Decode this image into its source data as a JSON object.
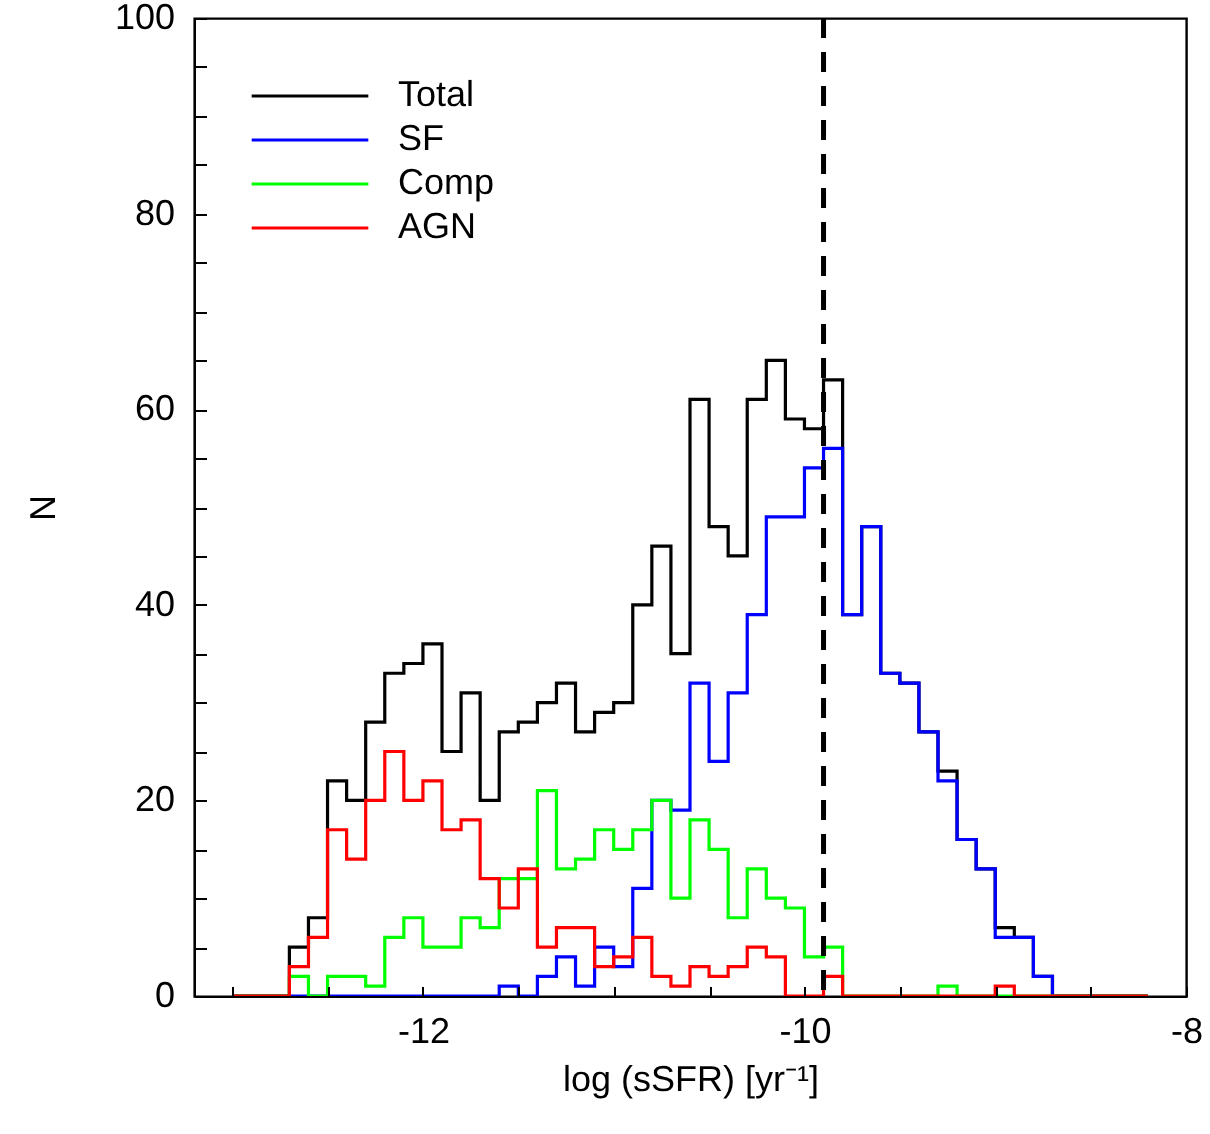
{
  "chart_data": {
    "type": "histogram",
    "xlabel": "log (sSFR) [yr⁻¹]",
    "ylabel": "N",
    "bins": [
      -13.0,
      -12.9,
      -12.8,
      -12.7,
      -12.6,
      -12.5,
      -12.4,
      -12.3,
      -12.2,
      -12.1,
      -12.0,
      -11.9,
      -11.8,
      -11.7,
      -11.6,
      -11.5,
      -11.4,
      -11.3,
      -11.2,
      -11.1,
      -11.0,
      -10.9,
      -10.8,
      -10.7,
      -10.6,
      -10.5,
      -10.4,
      -10.3,
      -10.2,
      -10.1,
      -10.0,
      -9.9,
      -9.8,
      -9.7,
      -9.6,
      -9.5,
      -9.4,
      -9.3,
      -9.2,
      -9.1,
      -9.0,
      -8.9,
      -8.8,
      -8.7,
      -8.6,
      -8.5,
      -8.4,
      -8.3,
      -8.2
    ],
    "series": [
      {
        "name": "Total",
        "color": "#000000",
        "values": [
          0,
          0,
          0,
          5,
          8,
          22,
          20,
          28,
          33,
          34,
          36,
          25,
          31,
          20,
          27,
          28,
          30,
          32,
          27,
          29,
          30,
          40,
          46,
          35,
          61,
          48,
          45,
          61,
          65,
          59,
          58,
          63,
          39,
          48,
          33,
          32,
          27,
          23,
          16,
          13,
          7,
          6,
          2,
          0,
          0,
          0,
          0,
          0
        ]
      },
      {
        "name": "SF",
        "color": "#0000ff",
        "values": [
          0,
          0,
          0,
          0,
          0,
          0,
          0,
          0,
          0,
          0,
          0,
          0,
          0,
          0,
          1,
          0,
          2,
          4,
          1,
          5,
          3,
          11,
          20,
          19,
          32,
          24,
          31,
          39,
          49,
          49,
          54,
          56,
          39,
          48,
          33,
          32,
          27,
          22,
          16,
          13,
          6,
          6,
          2,
          0,
          0,
          0,
          0,
          0
        ]
      },
      {
        "name": "Comp",
        "color": "#00ff00",
        "values": [
          0,
          0,
          0,
          2,
          0,
          2,
          2,
          1,
          6,
          8,
          5,
          5,
          8,
          7,
          12,
          12,
          21,
          13,
          14,
          17,
          15,
          17,
          20,
          10,
          18,
          15,
          8,
          13,
          10,
          9,
          4,
          5,
          0,
          0,
          0,
          0,
          0,
          1,
          0,
          0,
          0,
          0,
          0,
          0,
          0,
          0,
          0,
          0
        ]
      },
      {
        "name": "AGN",
        "color": "#ff0000",
        "values": [
          0,
          0,
          0,
          3,
          6,
          17,
          14,
          20,
          25,
          20,
          22,
          17,
          18,
          12,
          9,
          13,
          5,
          7,
          7,
          3,
          4,
          6,
          2,
          1,
          3,
          2,
          3,
          5,
          4,
          0,
          0,
          2,
          0,
          0,
          0,
          0,
          0,
          0,
          0,
          0,
          1,
          0,
          0,
          0,
          0,
          0,
          0,
          0
        ]
      }
    ],
    "xlim": [
      -13.2,
      -8
    ],
    "xticks": [
      {
        "value": -13,
        "label": null
      },
      {
        "value": -12.5,
        "label": null
      },
      -12,
      {
        "value": -11.5,
        "label": null
      },
      {
        "value": -11,
        "label": null
      },
      {
        "value": -10.5,
        "label": null
      },
      -10,
      {
        "value": -9.5,
        "label": null
      },
      {
        "value": -9,
        "label": null
      },
      {
        "value": -8.5,
        "label": null
      },
      -8
    ],
    "ylim": [
      0,
      100
    ],
    "yticks": [
      0,
      {
        "value": 5,
        "label": null
      },
      {
        "value": 10,
        "label": null
      },
      {
        "value": 15,
        "label": null
      },
      20,
      {
        "value": 25,
        "label": null
      },
      {
        "value": 30,
        "label": null
      },
      {
        "value": 35,
        "label": null
      },
      40,
      {
        "value": 45,
        "label": null
      },
      {
        "value": 50,
        "label": null
      },
      {
        "value": 55,
        "label": null
      },
      60,
      {
        "value": 65,
        "label": null
      },
      {
        "value": 70,
        "label": null
      },
      {
        "value": 75,
        "label": null
      },
      80,
      {
        "value": 85,
        "label": null
      },
      {
        "value": 90,
        "label": null
      },
      {
        "value": 95,
        "label": null
      },
      100
    ],
    "ref_lines": [
      {
        "axis": "x",
        "value": -9.9,
        "line_style": "dashed",
        "color": "#000000"
      }
    ],
    "legend": "top left",
    "grid": false
  }
}
